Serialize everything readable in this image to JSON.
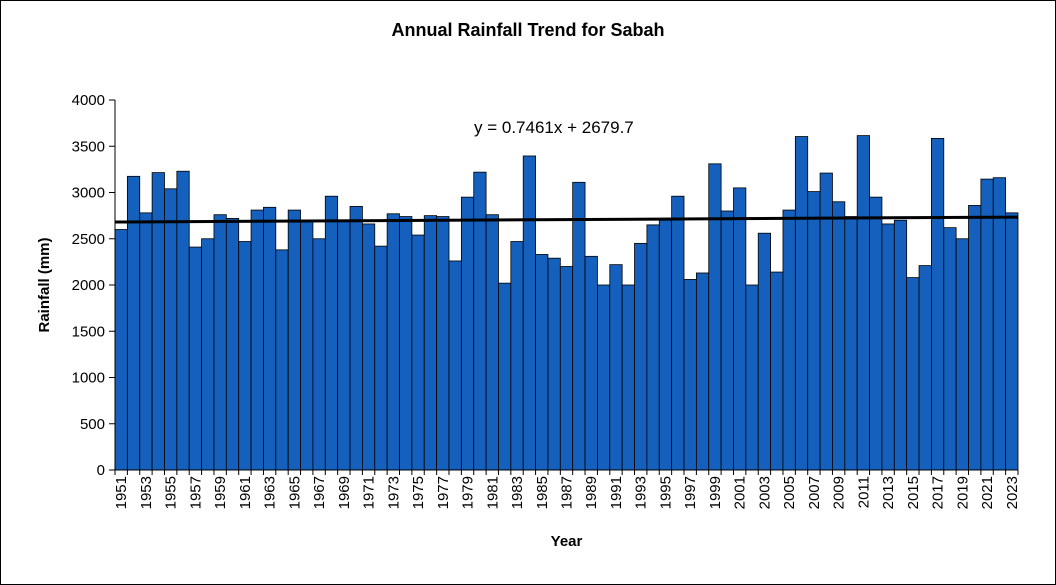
{
  "chart_data": {
    "type": "bar",
    "title": "Annual Rainfall Trend for Sabah",
    "xlabel": "Year",
    "ylabel": "Rainfall (mm)",
    "ylim": [
      0,
      4000
    ],
    "yticks": [
      0,
      500,
      1000,
      1500,
      2000,
      2500,
      3000,
      3500,
      4000
    ],
    "x_tick_labels": [
      "1951",
      "1953",
      "1955",
      "1957",
      "1959",
      "1961",
      "1963",
      "1965",
      "1967",
      "1969",
      "1971",
      "1973",
      "1975",
      "1977",
      "1979",
      "1981",
      "1983",
      "1985",
      "1987",
      "1989",
      "1991",
      "1993",
      "1995",
      "1997",
      "1999",
      "2001",
      "2003",
      "2005",
      "2007",
      "2009",
      "2011",
      "2013",
      "2015",
      "2017",
      "2019",
      "2021",
      "2023"
    ],
    "categories": [
      1951,
      1952,
      1953,
      1954,
      1955,
      1956,
      1957,
      1958,
      1959,
      1960,
      1961,
      1962,
      1963,
      1964,
      1965,
      1966,
      1967,
      1968,
      1969,
      1970,
      1971,
      1972,
      1973,
      1974,
      1975,
      1976,
      1977,
      1978,
      1979,
      1980,
      1981,
      1982,
      1983,
      1984,
      1985,
      1986,
      1987,
      1988,
      1989,
      1990,
      1991,
      1992,
      1993,
      1994,
      1995,
      1996,
      1997,
      1998,
      1999,
      2000,
      2001,
      2002,
      2003,
      2004,
      2005,
      2006,
      2007,
      2008,
      2009,
      2010,
      2011,
      2012,
      2013,
      2014,
      2015,
      2016,
      2017,
      2018,
      2019,
      2020,
      2021,
      2022,
      2023
    ],
    "values": [
      2600,
      3175,
      2780,
      3215,
      3040,
      3230,
      2410,
      2500,
      2760,
      2720,
      2470,
      2810,
      2840,
      2380,
      2810,
      2700,
      2500,
      2960,
      2700,
      2850,
      2660,
      2420,
      2770,
      2740,
      2540,
      2750,
      2740,
      2260,
      2950,
      3220,
      2760,
      2020,
      2470,
      3395,
      2330,
      2290,
      2200,
      3110,
      2310,
      2000,
      2220,
      2000,
      2450,
      2650,
      2700,
      2960,
      2060,
      2130,
      3310,
      2800,
      3050,
      2000,
      2560,
      2140,
      2810,
      3605,
      3010,
      3210,
      2900,
      2740,
      3615,
      2950,
      2660,
      2700,
      2080,
      2210,
      3585,
      2620,
      2500,
      2860,
      3145,
      3160,
      2780
    ],
    "bar_color": "#1560BD",
    "bar_edge_color": "#000000",
    "grid": false,
    "trendline": {
      "equation_label": "y = 0.7461x + 2679.7",
      "slope": 0.7461,
      "intercept": 2679.7,
      "color": "#000000"
    }
  }
}
